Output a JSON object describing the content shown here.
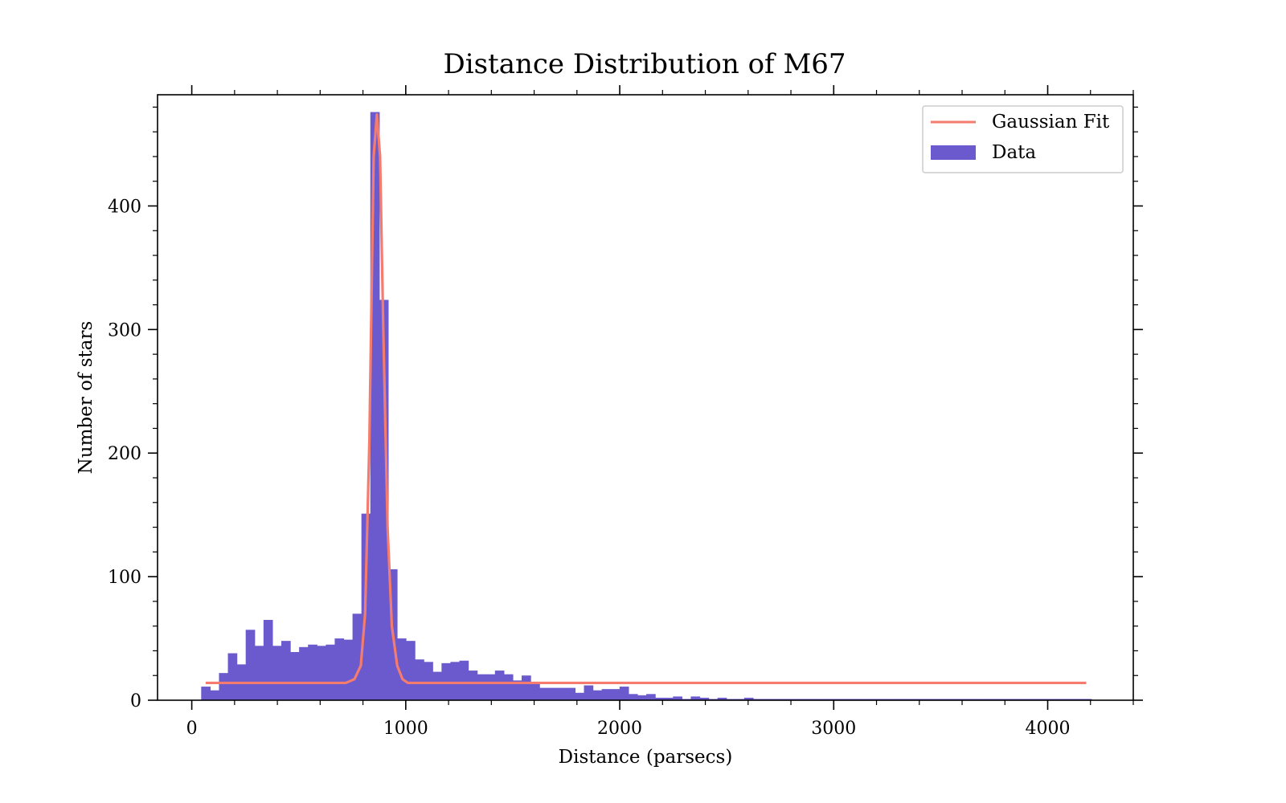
{
  "chart_data": {
    "type": "bar",
    "title": "Distance Distribution of M67",
    "xlabel": "Distance (parsecs)",
    "ylabel": "Number of stars",
    "xlim": [
      -160,
      4400
    ],
    "ylim": [
      0,
      490
    ],
    "xticks": [
      0,
      1000,
      2000,
      3000,
      4000
    ],
    "yticks": [
      0,
      100,
      200,
      300,
      400
    ],
    "xtick_labels": [
      "0",
      "1000",
      "2000",
      "3000",
      "4000"
    ],
    "ytick_labels": [
      "0",
      "100",
      "200",
      "300",
      "400"
    ],
    "grid": false,
    "legend_position": "top-right",
    "bin_start": 44,
    "bin_width": 41.6,
    "bin_counts": [
      11,
      8,
      22,
      38,
      29,
      57,
      44,
      65,
      44,
      48,
      39,
      43,
      45,
      44,
      45,
      50,
      49,
      70,
      151,
      476,
      324,
      106,
      50,
      48,
      33,
      31,
      23,
      30,
      31,
      32,
      24,
      21,
      21,
      24,
      21,
      16,
      20,
      13,
      10,
      10,
      10,
      10,
      6,
      12,
      8,
      9,
      9,
      11,
      5,
      4,
      5,
      2,
      2,
      3,
      1,
      3,
      2,
      1,
      2,
      1,
      1,
      2,
      1,
      1,
      1,
      1,
      1,
      1,
      1,
      1,
      1,
      1,
      1,
      1,
      1,
      1,
      1,
      1,
      1,
      1,
      1,
      1,
      1,
      1,
      1,
      1,
      1,
      1,
      1,
      1,
      1,
      1,
      1,
      1,
      1,
      1,
      1,
      1,
      1,
      1
    ],
    "series": [
      {
        "name": "Data",
        "kind": "histogram",
        "color": "#6a5acd"
      },
      {
        "name": "Gaussian Fit",
        "kind": "line",
        "color": "#f47c6e",
        "x": [
          65,
          720,
          760,
          790,
          810,
          830,
          850,
          865,
          880,
          895,
          915,
          935,
          960,
          985,
          1010,
          1030,
          1050,
          4180
        ],
        "y": [
          14,
          14,
          17,
          28,
          70,
          210,
          440,
          474,
          440,
          300,
          140,
          60,
          28,
          17,
          14,
          14,
          14,
          14
        ]
      }
    ]
  }
}
